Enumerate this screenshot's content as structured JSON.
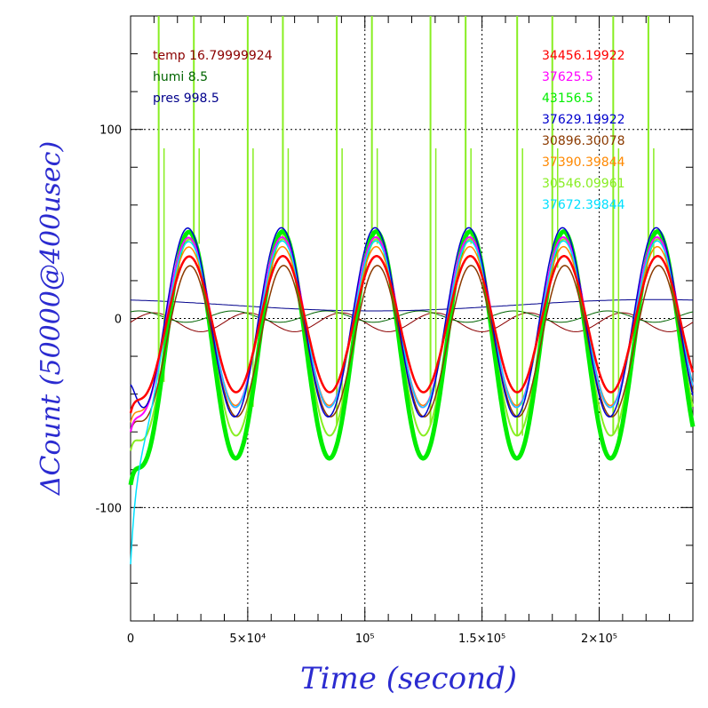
{
  "chart_data": {
    "type": "line",
    "title": "",
    "xlabel": "Time (second)",
    "ylabel": "ΔCount (50000@400usec)",
    "xlim": [
      0,
      240000
    ],
    "ylim": [
      -160,
      160
    ],
    "grid": true,
    "x_ticks": [
      {
        "value": 0,
        "label": "0"
      },
      {
        "value": 50000,
        "label": "5×10⁴"
      },
      {
        "value": 100000,
        "label": "10⁵"
      },
      {
        "value": 150000,
        "label": "1.5×10⁵"
      },
      {
        "value": 200000,
        "label": "2×10⁵"
      }
    ],
    "y_ticks": [
      {
        "value": 100,
        "label": "100"
      },
      {
        "value": 0,
        "label": "0"
      },
      {
        "value": -100,
        "label": "-100"
      }
    ],
    "env_legend": [
      {
        "text": "temp 16.79999924",
        "color": "#8b0000"
      },
      {
        "text": "humi 8.5",
        "color": "#006400"
      },
      {
        "text": "pres 998.5",
        "color": "#00008b"
      }
    ],
    "series": [
      {
        "name": "34456.19922",
        "color": "#ff0000",
        "amplitude": 36,
        "offset": -3,
        "phase": 0.0,
        "width": 2.5,
        "start": -50
      },
      {
        "name": "37625.5",
        "color": "#ff00ff",
        "amplitude": 45,
        "offset": -2,
        "phase": 0.05,
        "width": 2,
        "start": -60
      },
      {
        "name": "43156.5",
        "color": "#00ee00",
        "amplitude": 60,
        "offset": -14,
        "phase": 0.02,
        "width": 5,
        "start": -88
      },
      {
        "name": "37629.19922",
        "color": "#0000cd",
        "amplitude": 50,
        "offset": -2,
        "phase": 0.1,
        "width": 1.5,
        "start": -35
      },
      {
        "name": "30896.30078",
        "color": "#8b3a00",
        "amplitude": 40,
        "offset": -12,
        "phase": -0.05,
        "width": 1.5,
        "start": -60
      },
      {
        "name": "37390.39844",
        "color": "#ff8800",
        "amplitude": 42,
        "offset": -4,
        "phase": 0.03,
        "width": 1.5,
        "start": -55
      },
      {
        "name": "30546.09961",
        "color": "#88ee22",
        "amplitude": 52,
        "offset": -10,
        "phase": 0.0,
        "width": 2,
        "start": -70
      },
      {
        "name": "37672.39844",
        "color": "#00e0ff",
        "amplitude": 44,
        "offset": -3,
        "phase": 0.04,
        "width": 1.5,
        "start": -130
      }
    ],
    "environment_series": [
      {
        "name": "temp",
        "color": "#8b0000",
        "amplitude": 5,
        "offset": -2
      },
      {
        "name": "humi",
        "color": "#006400",
        "amplitude": 3,
        "offset": 1
      },
      {
        "name": "pres",
        "color": "#00008b",
        "amplitude": 3,
        "offset": 7
      }
    ],
    "period": 40000,
    "spikes_series": "30546.09961",
    "spike_x": [
      12000,
      27000,
      50000,
      65000,
      88000,
      103000,
      128000,
      143000,
      165000,
      180000,
      206000,
      221000
    ],
    "spike_top": 160
  }
}
